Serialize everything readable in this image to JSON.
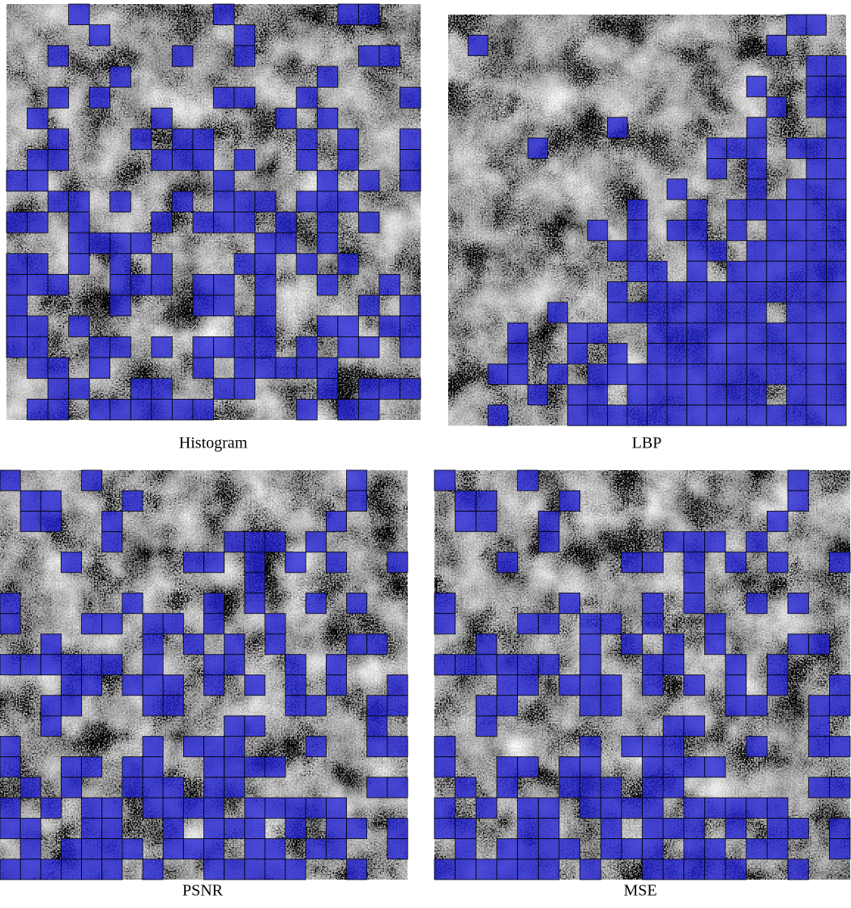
{
  "panels": [
    {
      "caption": "Histogram"
    },
    {
      "caption": "LBP"
    },
    {
      "caption": "PSNR"
    },
    {
      "caption": "MSE"
    }
  ]
}
